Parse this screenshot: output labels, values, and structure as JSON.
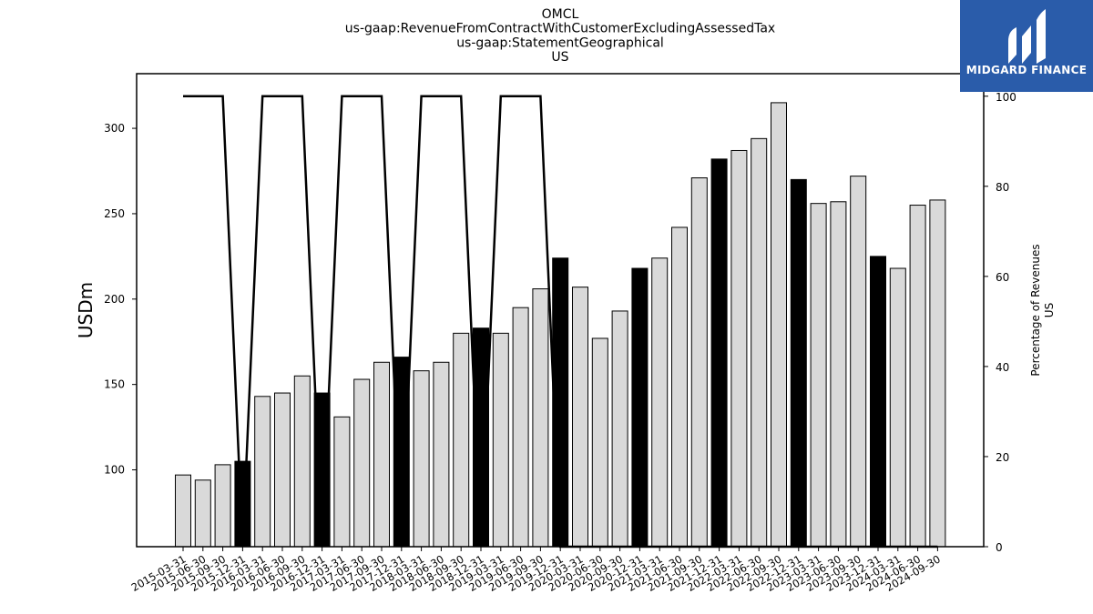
{
  "header": {
    "title_lines": [
      "OMCL",
      "us-gaap:RevenueFromContractWithCustomerExcludingAssessedTax",
      "us-gaap:StatementGeographical",
      "US"
    ]
  },
  "logo": {
    "text": "MIDGARD FINANCE",
    "bg_color": "#2a5caa",
    "icon": "midgard-m-logo"
  },
  "chart_data": {
    "type": "bar",
    "ylabel": "USDm",
    "y2label": [
      "Percentage of Revenues",
      "US"
    ],
    "ylim": [
      55,
      332
    ],
    "y2lim": [
      0,
      105
    ],
    "yticks": [
      100,
      150,
      200,
      250,
      300
    ],
    "y2ticks": [
      0,
      20,
      40,
      60,
      80,
      100
    ],
    "grid": false,
    "categories": [
      "2015-03-31",
      "2015-06-30",
      "2015-09-30",
      "2015-12-31",
      "2016-03-31",
      "2016-06-30",
      "2016-09-30",
      "2016-12-31",
      "2017-03-31",
      "2017-06-30",
      "2017-09-30",
      "2017-12-31",
      "2018-03-31",
      "2018-06-30",
      "2018-09-30",
      "2018-12-31",
      "2019-03-31",
      "2019-06-30",
      "2019-09-30",
      "2019-12-31",
      "2020-03-31",
      "2020-06-30",
      "2020-09-30",
      "2020-12-31",
      "2021-03-31",
      "2021-06-30",
      "2021-09-30",
      "2021-12-31",
      "2022-03-31",
      "2022-06-30",
      "2022-09-30",
      "2022-12-31",
      "2023-03-31",
      "2023-06-30",
      "2023-09-30",
      "2023-12-31",
      "2024-03-31",
      "2024-06-30",
      "2024-09-30"
    ],
    "series": [
      {
        "values": [
          97,
          94,
          103,
          105,
          143,
          145,
          155,
          145,
          131,
          153,
          163,
          166,
          158,
          163,
          180,
          183,
          180,
          195,
          206,
          224,
          207,
          177,
          193,
          218,
          224,
          242,
          271,
          282,
          287,
          294,
          315,
          270,
          256,
          257,
          272,
          225,
          218,
          255,
          258
        ],
        "highlight": [
          false,
          false,
          false,
          true,
          false,
          false,
          false,
          true,
          false,
          false,
          false,
          true,
          false,
          false,
          false,
          true,
          false,
          false,
          false,
          true,
          false,
          false,
          false,
          true,
          false,
          false,
          false,
          true,
          false,
          false,
          false,
          true,
          false,
          false,
          false,
          true,
          false,
          false,
          false
        ],
        "color": "#d9d9d9",
        "highlight_color": "#000000"
      },
      {
        "axis": "right",
        "kind": "line",
        "values": [
          100,
          100,
          100,
          0,
          100,
          100,
          100,
          0,
          100,
          100,
          100,
          0,
          100,
          100,
          100,
          0,
          100,
          100,
          100,
          0,
          0,
          0,
          0,
          0,
          0,
          0,
          0,
          0,
          0,
          0,
          0,
          0,
          0,
          0,
          0,
          0,
          0,
          0,
          0
        ],
        "color": "#000000"
      }
    ]
  }
}
